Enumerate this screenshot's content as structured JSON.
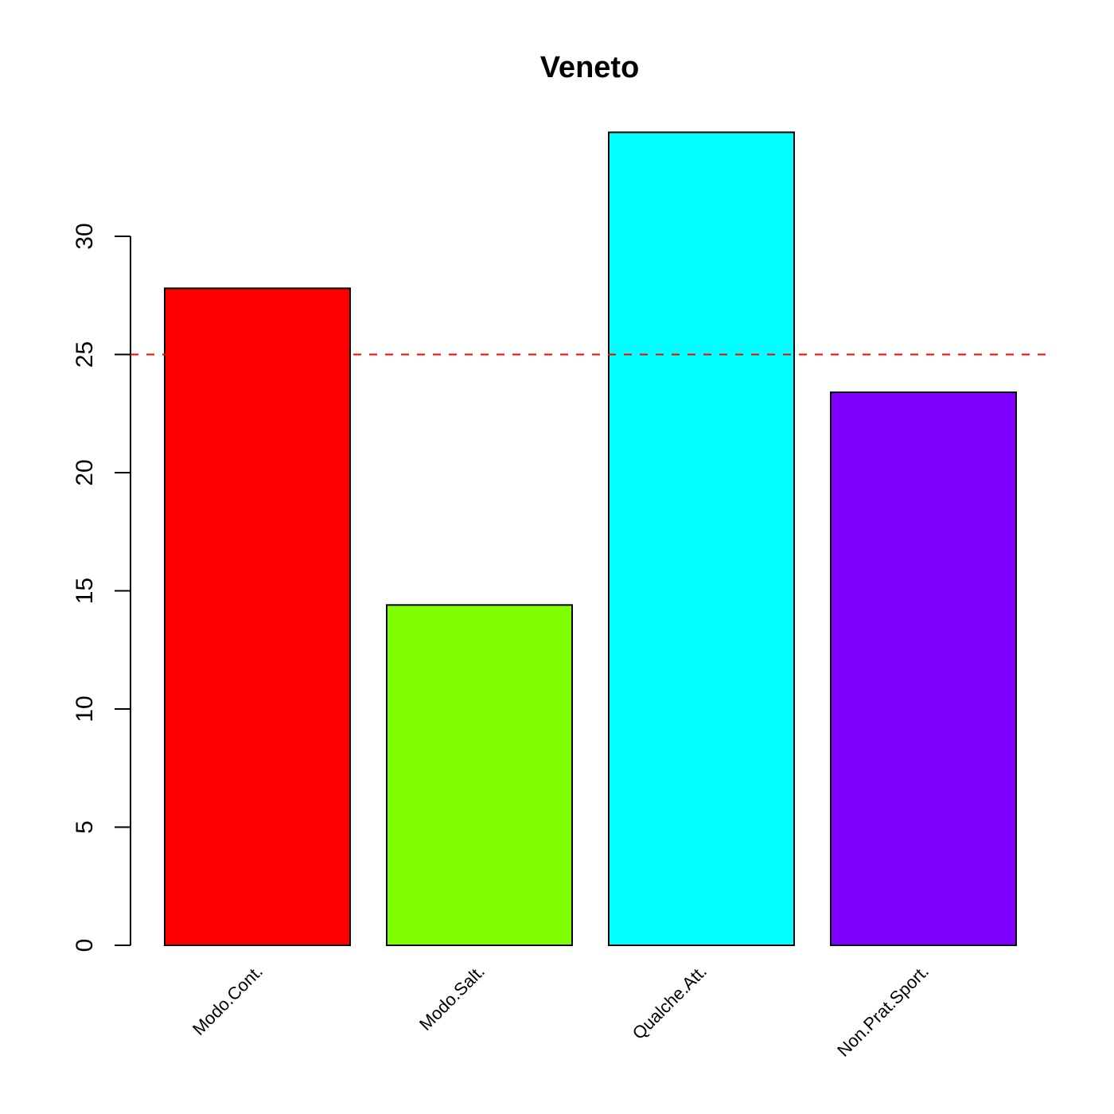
{
  "chart_data": {
    "type": "bar",
    "title": "Veneto",
    "xlabel": "",
    "ylabel": "",
    "categories": [
      "Modo.Cont.",
      "Modo.Salt.",
      "Qualche.Att.",
      "Non.Prat.Sport."
    ],
    "values": [
      27.8,
      14.4,
      34.4,
      23.4
    ],
    "colors": [
      "#FF0000",
      "#80FF00",
      "#00FFFF",
      "#8000FF"
    ],
    "y_ticks": [
      0,
      5,
      10,
      15,
      20,
      25,
      30
    ],
    "y_tick_labels": [
      "0",
      "5",
      "10",
      "15",
      "20",
      "25",
      "30"
    ],
    "ylim": [
      0,
      34.4
    ],
    "reference_line": {
      "value": 25,
      "color": "#FF0000",
      "style": "dashed"
    },
    "grid": false,
    "legend": "none"
  }
}
